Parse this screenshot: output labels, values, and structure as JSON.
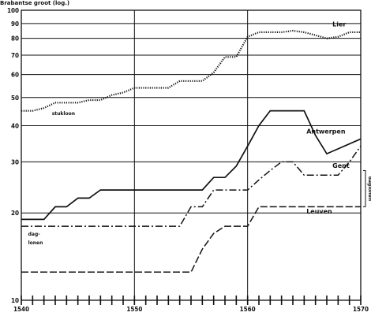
{
  "chart_data": {
    "type": "line",
    "ylabel": "Brabantse groot (log.)",
    "y_scale": "log",
    "ylim": [
      10,
      100
    ],
    "xlim": [
      1540,
      1570
    ],
    "x_ticks": [
      1540,
      1550,
      1560,
      1570
    ],
    "y_ticks": [
      10,
      20,
      30,
      40,
      50,
      60,
      70,
      80,
      90,
      100
    ],
    "grid": true,
    "series": [
      {
        "name": "Lier",
        "style": "dotted",
        "points": [
          [
            1540,
            45
          ],
          [
            1541,
            45
          ],
          [
            1542,
            46
          ],
          [
            1543,
            48
          ],
          [
            1544,
            48
          ],
          [
            1545,
            48
          ],
          [
            1546,
            49
          ],
          [
            1547,
            49
          ],
          [
            1548,
            51
          ],
          [
            1549,
            52
          ],
          [
            1550,
            54
          ],
          [
            1553,
            54
          ],
          [
            1554,
            57
          ],
          [
            1556,
            57
          ],
          [
            1557,
            61
          ],
          [
            1558,
            69
          ],
          [
            1559,
            69
          ],
          [
            1560,
            81
          ],
          [
            1561,
            84
          ],
          [
            1563,
            84
          ],
          [
            1564,
            85
          ],
          [
            1565,
            84
          ],
          [
            1566,
            82
          ],
          [
            1567,
            80
          ],
          [
            1568,
            81
          ],
          [
            1569,
            84
          ],
          [
            1570,
            84
          ]
        ]
      },
      {
        "name": "Antwerpen",
        "style": "solid",
        "points": [
          [
            1540,
            19
          ],
          [
            1541,
            19
          ],
          [
            1542,
            19
          ],
          [
            1543,
            21
          ],
          [
            1544,
            21
          ],
          [
            1545,
            22.5
          ],
          [
            1546,
            22.5
          ],
          [
            1547,
            24
          ],
          [
            1548,
            24
          ],
          [
            1556,
            24
          ],
          [
            1557,
            26.5
          ],
          [
            1558,
            26.5
          ],
          [
            1559,
            29
          ],
          [
            1560,
            34
          ],
          [
            1561,
            40
          ],
          [
            1562,
            45
          ],
          [
            1563,
            45
          ],
          [
            1565,
            45
          ],
          [
            1566,
            37
          ],
          [
            1567,
            32
          ],
          [
            1570,
            36
          ]
        ]
      },
      {
        "name": "Gent",
        "style": "dash-dot",
        "points": [
          [
            1540,
            18
          ],
          [
            1545,
            18
          ],
          [
            1550,
            18
          ],
          [
            1554,
            18
          ],
          [
            1555,
            21
          ],
          [
            1556,
            21
          ],
          [
            1557,
            24
          ],
          [
            1559,
            24
          ],
          [
            1560,
            24
          ],
          [
            1561,
            26
          ],
          [
            1562,
            28
          ],
          [
            1563,
            30
          ],
          [
            1564,
            30
          ],
          [
            1565,
            27
          ],
          [
            1566,
            27
          ],
          [
            1568,
            27
          ],
          [
            1569,
            30
          ],
          [
            1570,
            34
          ]
        ]
      },
      {
        "name": "Leuven",
        "style": "dashed",
        "points": [
          [
            1540,
            12.5
          ],
          [
            1541,
            12.5
          ],
          [
            1550,
            12.5
          ],
          [
            1555,
            12.5
          ],
          [
            1556,
            15
          ],
          [
            1557,
            17
          ],
          [
            1558,
            18
          ],
          [
            1559,
            18
          ],
          [
            1560,
            18
          ],
          [
            1561,
            21
          ],
          [
            1570,
            21
          ]
        ]
      }
    ],
    "annotations": {
      "stukloon": "stukloon",
      "dagloonen_left": "dag-\nlonen",
      "daglonen_right": "daglonen"
    }
  }
}
